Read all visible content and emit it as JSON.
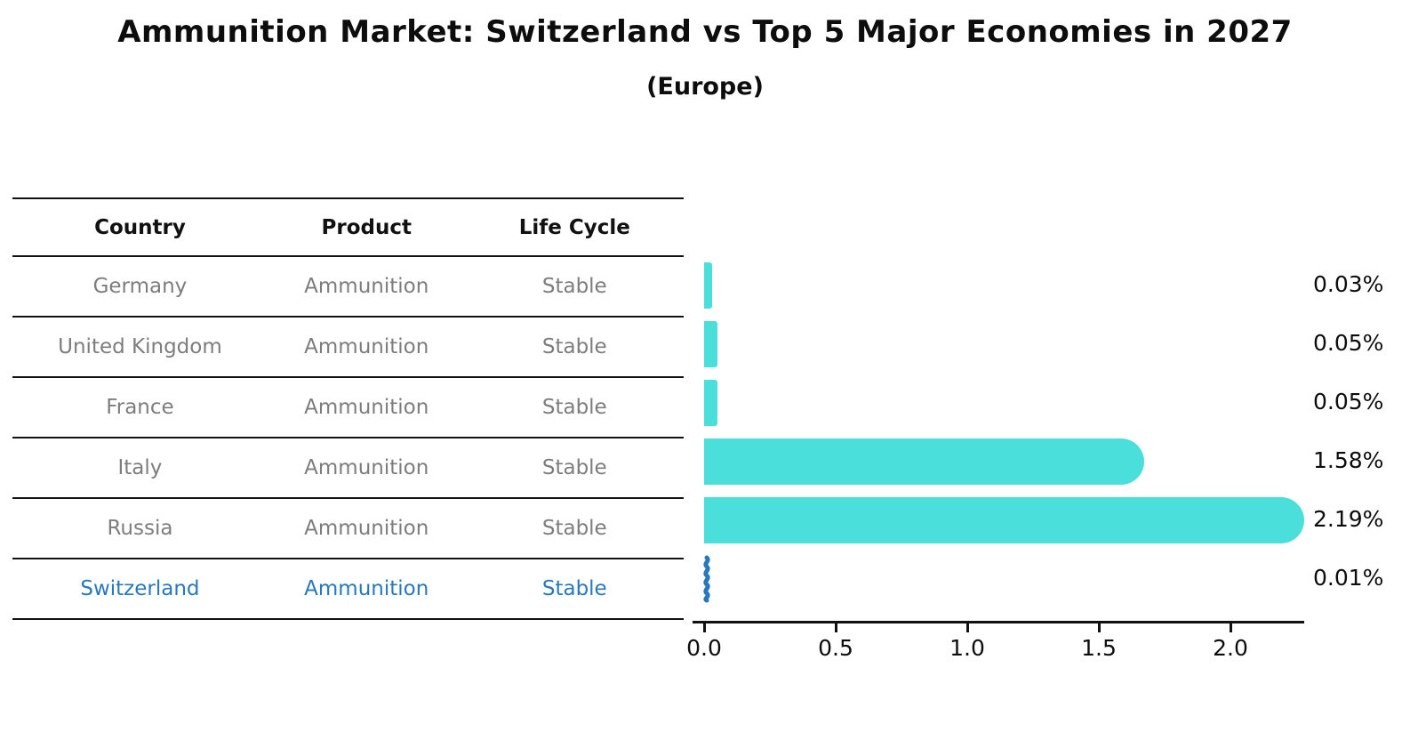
{
  "table": {
    "columns": [
      "Country",
      "Product",
      "Life Cycle"
    ],
    "rows": [
      {
        "country": "Germany",
        "product": "Ammunition",
        "life_cycle": "Stable"
      },
      {
        "country": "United Kingdom",
        "product": "Ammunition",
        "life_cycle": "Stable"
      },
      {
        "country": "France",
        "product": "Ammunition",
        "life_cycle": "Stable"
      },
      {
        "country": "Italy",
        "product": "Ammunition",
        "life_cycle": "Stable"
      },
      {
        "country": "Russia",
        "product": "Ammunition",
        "life_cycle": "Stable"
      },
      {
        "country": "Switzerland",
        "product": "Ammunition",
        "life_cycle": "Stable"
      }
    ]
  },
  "chart_data": {
    "type": "bar",
    "orientation": "horizontal",
    "title": "Ammunition Market: Switzerland vs Top 5 Major Economies in 2027",
    "subtitle": "(Europe)",
    "categories": [
      "Germany",
      "United Kingdom",
      "France",
      "Italy",
      "Russia",
      "Switzerland"
    ],
    "values": [
      0.03,
      0.05,
      0.05,
      1.58,
      2.19,
      0.01
    ],
    "value_labels": [
      "0.03%",
      "0.05%",
      "0.05%",
      "1.58%",
      "2.19%",
      "0.01%"
    ],
    "xlabel": "",
    "ylabel": "",
    "xticks": [
      0.0,
      0.5,
      1.0,
      1.5,
      2.0
    ],
    "xtick_labels": [
      "0.0",
      "0.5",
      "1.0",
      "1.5",
      "2.0"
    ],
    "xlim": [
      0,
      2.28
    ],
    "grid": false,
    "legend": "none",
    "bar_color": "#4adfdb",
    "highlight_color": "#2878be",
    "highlight_index": 5,
    "text_color": "#0d0d0d",
    "muted_text_color": "#7d7d7d"
  }
}
